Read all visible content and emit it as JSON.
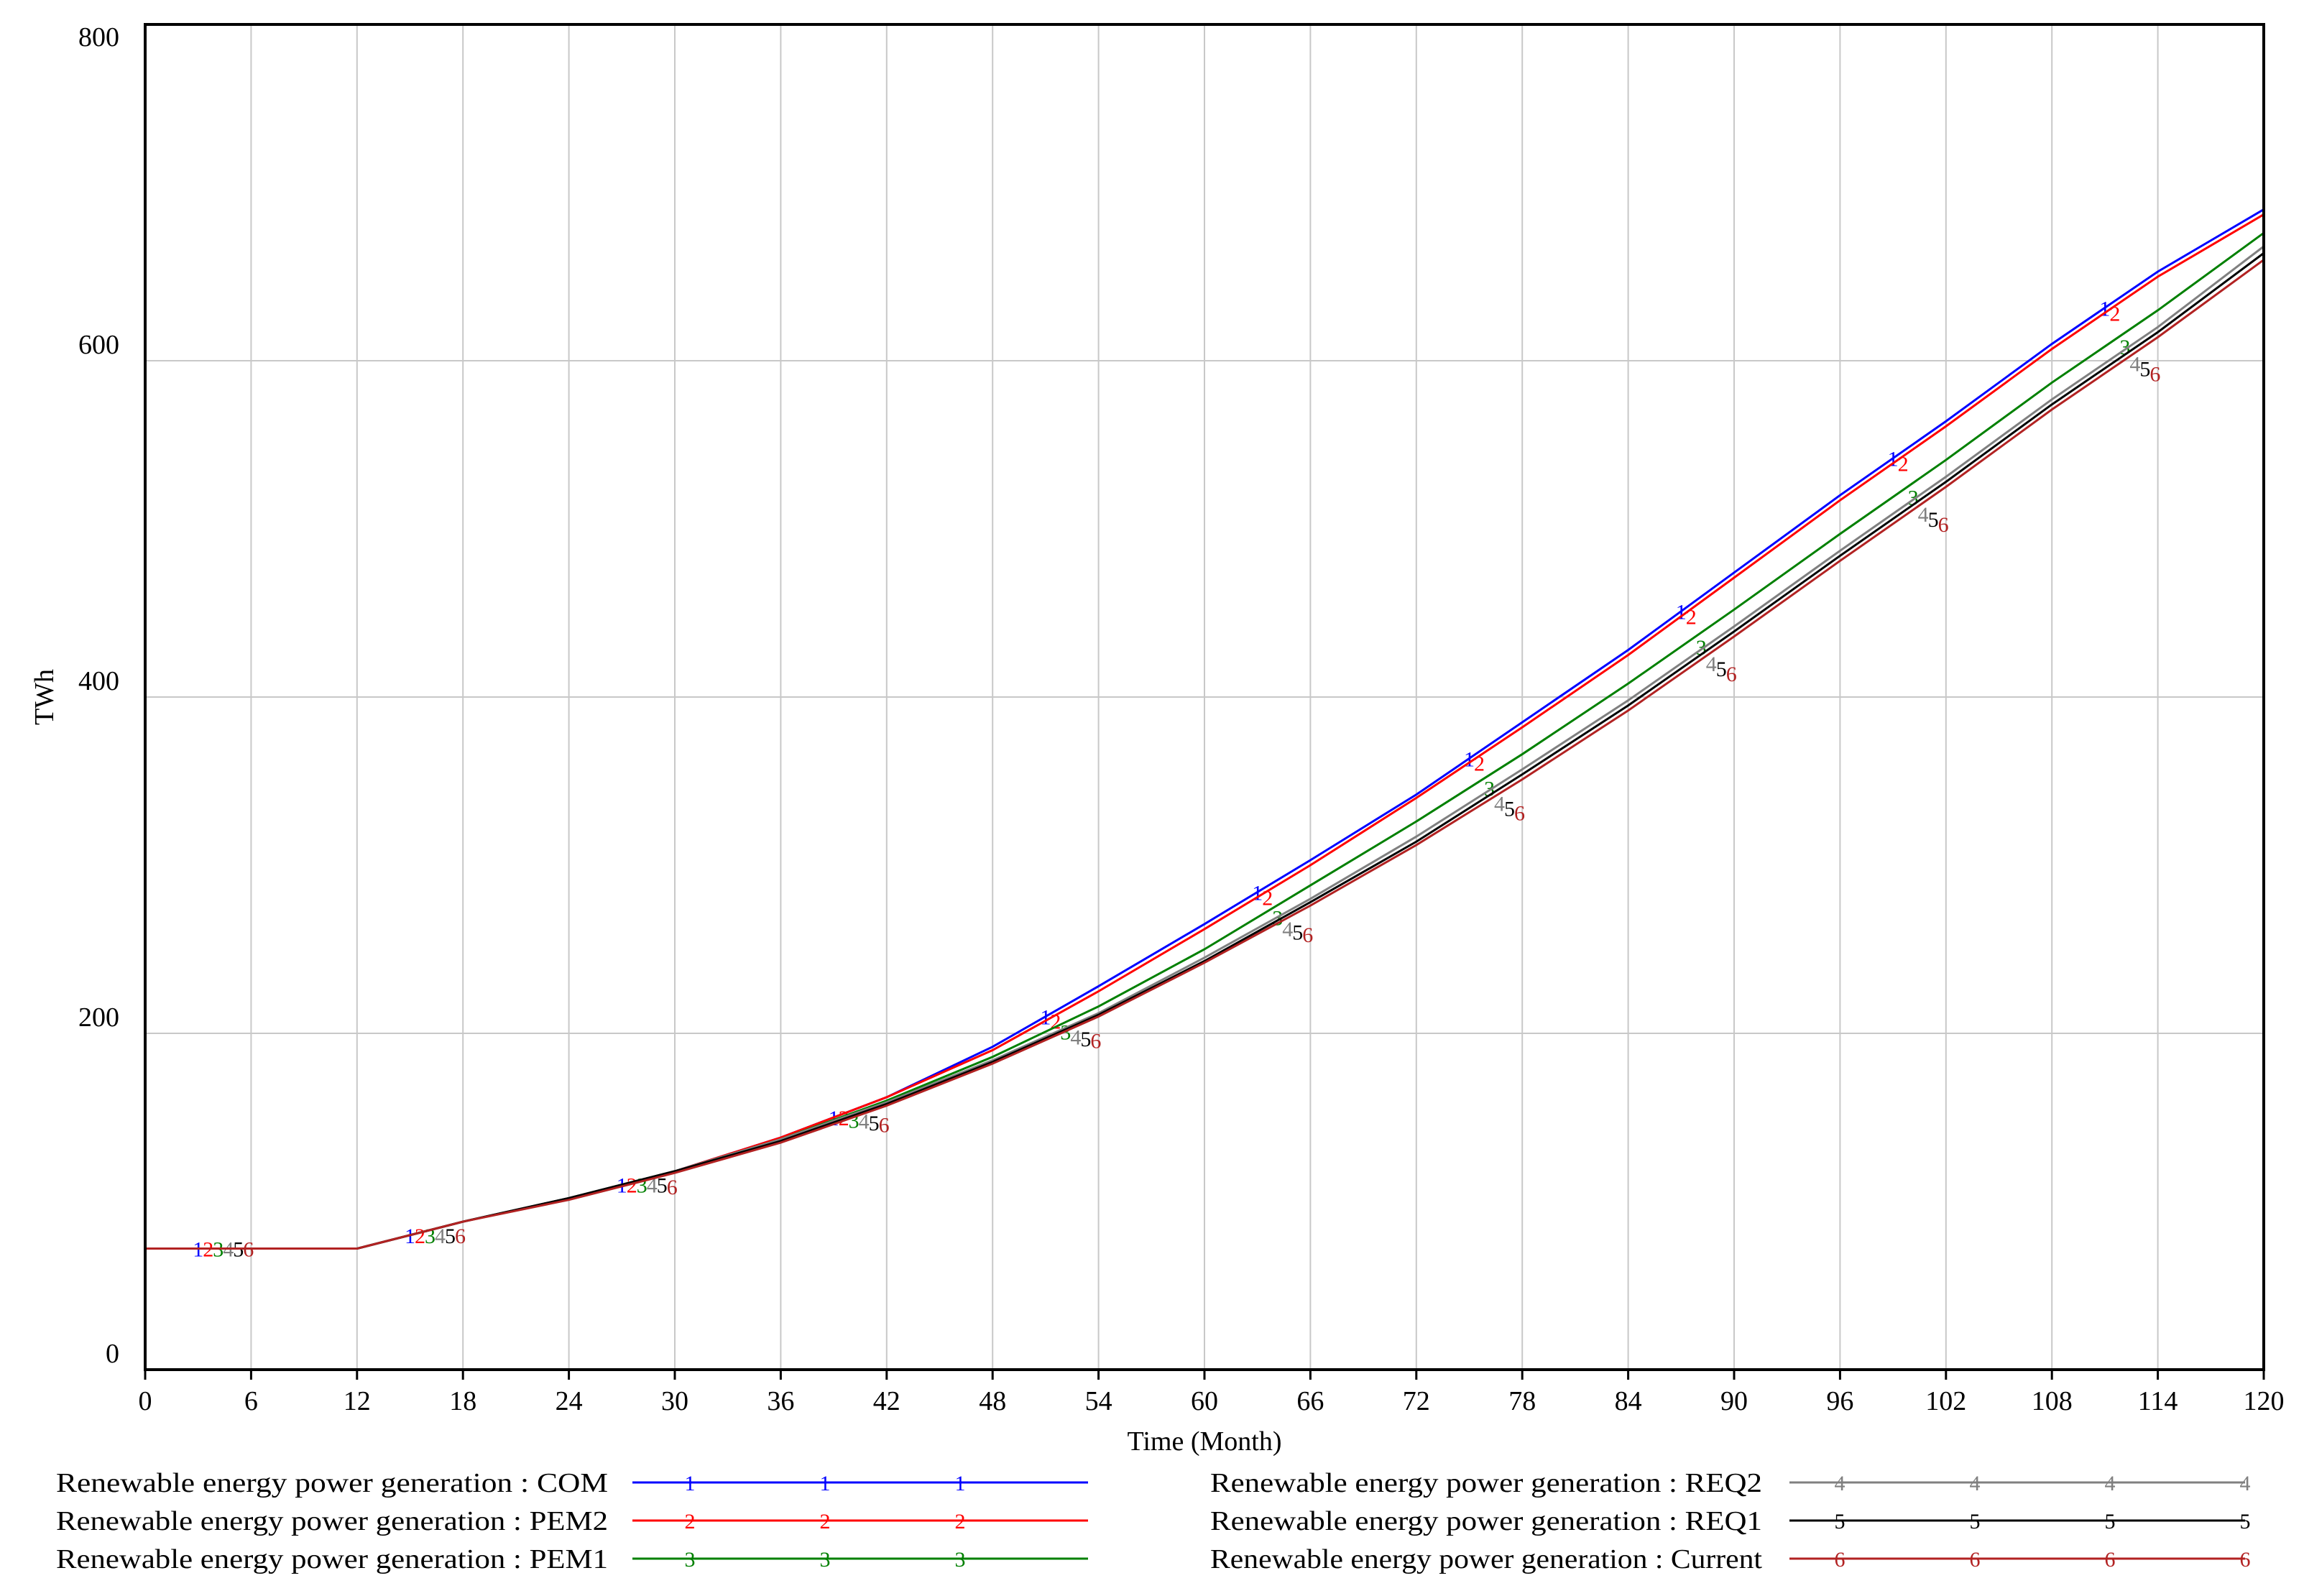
{
  "chart_data": {
    "type": "line",
    "xlabel": "Time (Month)",
    "ylabel": "TWh",
    "xlim": [
      0,
      120
    ],
    "ylim": [
      0,
      800
    ],
    "x_ticks": [
      "0",
      "6",
      "12",
      "18",
      "24",
      "30",
      "36",
      "42",
      "48",
      "54",
      "60",
      "66",
      "72",
      "78",
      "84",
      "90",
      "96",
      "102",
      "108",
      "114",
      "120"
    ],
    "y_ticks": [
      "0",
      "200",
      "400",
      "600",
      "800"
    ],
    "grid": true,
    "legend_position": "bottom",
    "x": [
      0,
      6,
      12,
      18,
      24,
      30,
      36,
      42,
      48,
      54,
      60,
      66,
      72,
      78,
      84,
      90,
      96,
      102,
      108,
      114,
      120
    ],
    "series": [
      {
        "name": "Renewable energy power generation : COM",
        "marker": "1",
        "color": "#0000ff",
        "values": [
          72,
          72,
          72,
          88,
          102,
          118,
          138,
          162,
          192,
          228,
          265,
          303,
          342,
          385,
          428,
          474,
          520,
          564,
          610,
          653,
          690
        ]
      },
      {
        "name": "Renewable energy power generation : PEM2",
        "marker": "2",
        "color": "#ff0000",
        "values": [
          72,
          72,
          72,
          88,
          102,
          118,
          138,
          162,
          190,
          225,
          262,
          300,
          340,
          382,
          425,
          471,
          517,
          561,
          607,
          650,
          687
        ]
      },
      {
        "name": "Renewable energy power generation : PEM1",
        "marker": "3",
        "color": "#008000",
        "values": [
          72,
          72,
          72,
          88,
          102,
          118,
          137,
          160,
          186,
          216,
          250,
          288,
          326,
          366,
          408,
          452,
          497,
          541,
          587,
          630,
          676
        ]
      },
      {
        "name": "Renewable energy power generation : REQ2",
        "marker": "4",
        "color": "#808080",
        "values": [
          72,
          72,
          72,
          88,
          102,
          118,
          137,
          159,
          184,
          212,
          245,
          280,
          317,
          357,
          398,
          442,
          487,
          531,
          577,
          620,
          668
        ]
      },
      {
        "name": "Renewable energy power generation : REQ1",
        "marker": "5",
        "color": "#000000",
        "values": [
          72,
          72,
          72,
          88,
          102,
          118,
          136,
          158,
          183,
          211,
          243,
          278,
          314,
          354,
          395,
          439,
          484,
          528,
          574,
          617,
          664
        ]
      },
      {
        "name": "Renewable energy power generation : Current",
        "marker": "6",
        "color": "#b22222",
        "values": [
          72,
          72,
          72,
          88,
          101,
          117,
          135,
          157,
          182,
          210,
          242,
          276,
          312,
          351,
          392,
          436,
          481,
          525,
          571,
          614,
          660
        ]
      }
    ]
  }
}
